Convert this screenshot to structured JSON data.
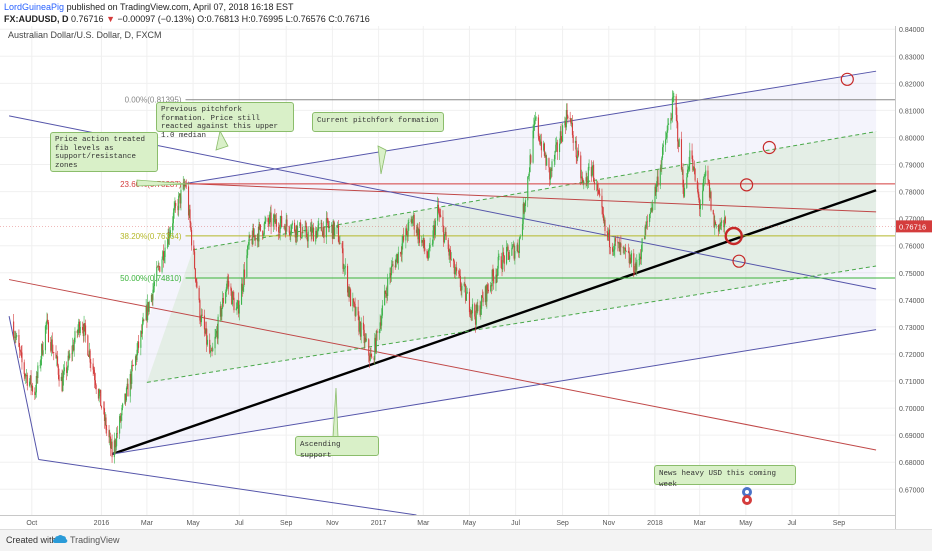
{
  "header": {
    "author": "LordGuineaPig",
    "published_text": "published on TradingView.com, April 07, 2018 16:18 EST",
    "symbol": "FX:AUDUSD, D",
    "last_price": "0.76716",
    "change_arrow": "▼",
    "change": "−0.00097 (−0.13%)",
    "ohlc": "O:0.76813 H:0.76995 L:0.76576 C:0.76716"
  },
  "chart_data": {
    "type": "candlestick",
    "title": "Australian Dollar/U.S. Dollar, D, FXCM",
    "x_ticks": [
      "Oct",
      "2016",
      "Mar",
      "May",
      "Jul",
      "Sep",
      "Nov",
      "2017",
      "Mar",
      "May",
      "Jul",
      "Sep",
      "Nov",
      "2018",
      "Mar",
      "May",
      "Jul",
      "Sep"
    ],
    "y_ticks": [
      "0.84000",
      "0.83000",
      "0.82000",
      "0.81000",
      "0.80000",
      "0.79000",
      "0.78000",
      "0.77000",
      "0.76000",
      "0.75000",
      "0.74000",
      "0.73000",
      "0.72000",
      "0.71000",
      "0.70000",
      "0.69000",
      "0.68000",
      "0.67000"
    ],
    "ylim": [
      0.6605,
      0.8412
    ],
    "last_price_label": "0.76716",
    "fib_levels": [
      {
        "label": "0.00%(0.81395)",
        "value": 0.81395,
        "color": "#888888"
      },
      {
        "label": "23.60%(0.78287)",
        "value": 0.78287,
        "color": "#d43c3c"
      },
      {
        "label": "38.20%(0.76364)",
        "value": 0.76364,
        "color": "#b5b82a"
      },
      {
        "label": "50.00%(0.74810)",
        "value": 0.7481,
        "color": "#3bb33b"
      }
    ],
    "price_path": [
      [
        "2015-09-05",
        0.732
      ],
      [
        "2015-09-20",
        0.714
      ],
      [
        "2015-10-05",
        0.706
      ],
      [
        "2015-10-20",
        0.731
      ],
      [
        "2015-11-10",
        0.709
      ],
      [
        "2015-12-05",
        0.733
      ],
      [
        "2015-12-20",
        0.716
      ],
      [
        "2016-01-15",
        0.683
      ],
      [
        "2016-02-05",
        0.707
      ],
      [
        "2016-03-05",
        0.74
      ],
      [
        "2016-04-05",
        0.771
      ],
      [
        "2016-04-21",
        0.783
      ],
      [
        "2016-05-10",
        0.735
      ],
      [
        "2016-05-25",
        0.718
      ],
      [
        "2016-06-15",
        0.747
      ],
      [
        "2016-06-28",
        0.735
      ],
      [
        "2016-07-15",
        0.762
      ],
      [
        "2016-08-10",
        0.769
      ],
      [
        "2016-09-10",
        0.767
      ],
      [
        "2016-09-28",
        0.764
      ],
      [
        "2016-10-25",
        0.767
      ],
      [
        "2016-11-08",
        0.765
      ],
      [
        "2016-11-25",
        0.74
      ],
      [
        "2016-12-23",
        0.717
      ],
      [
        "2017-01-15",
        0.749
      ],
      [
        "2017-02-15",
        0.77
      ],
      [
        "2017-03-08",
        0.755
      ],
      [
        "2017-03-20",
        0.773
      ],
      [
        "2017-04-10",
        0.751
      ],
      [
        "2017-05-09",
        0.734
      ],
      [
        "2017-06-10",
        0.754
      ],
      [
        "2017-07-05",
        0.76
      ],
      [
        "2017-07-27",
        0.806
      ],
      [
        "2017-08-15",
        0.786
      ],
      [
        "2017-09-08",
        0.81
      ],
      [
        "2017-09-28",
        0.782
      ],
      [
        "2017-10-10",
        0.789
      ],
      [
        "2017-10-28",
        0.764
      ],
      [
        "2017-11-20",
        0.757
      ],
      [
        "2017-12-08",
        0.752
      ],
      [
        "2018-01-01",
        0.78
      ],
      [
        "2018-01-26",
        0.814
      ],
      [
        "2018-02-09",
        0.779
      ],
      [
        "2018-02-16",
        0.795
      ],
      [
        "2018-03-01",
        0.775
      ],
      [
        "2018-03-10",
        0.787
      ],
      [
        "2018-03-20",
        0.768
      ],
      [
        "2018-04-05",
        0.7672
      ]
    ],
    "lines": [
      {
        "name": "ascending-support",
        "points": [
          [
            "2016-01-15",
            0.683
          ],
          [
            "2018-10-20",
            0.7805
          ]
        ],
        "color": "#000000"
      },
      {
        "name": "current-pitchfork-upper",
        "points": [
          [
            "2016-04-21",
            0.783
          ],
          [
            "2018-10-20",
            0.8245
          ]
        ],
        "color": "#5555aa"
      },
      {
        "name": "current-pitchfork-median",
        "points": [
          [
            "2016-04-21",
            0.783
          ],
          [
            "2018-10-20",
            0.7725
          ]
        ],
        "color": "#c04848"
      },
      {
        "name": "current-pitchfork-lower",
        "points": [
          [
            "2016-01-15",
            0.683
          ],
          [
            "2018-10-20",
            0.729
          ]
        ],
        "color": "#5555aa"
      },
      {
        "name": "previous-pitchfork-upper",
        "points": [
          [
            "2015-09-01",
            0.808
          ],
          [
            "2018-10-20",
            0.744
          ]
        ],
        "color": "#5555aa"
      },
      {
        "name": "previous-pitchfork-median",
        "points": [
          [
            "2015-09-01",
            0.7475
          ],
          [
            "2018-10-20",
            0.6845
          ]
        ],
        "color": "#c04848"
      },
      {
        "name": "previous-pitchfork-lower",
        "points": [
          [
            "2015-10-10",
            0.681
          ],
          [
            "2017-02-20",
            0.6605
          ]
        ],
        "color": "#5555aa"
      },
      {
        "name": "dashed-upper-median",
        "points": [
          [
            "2016-05-01",
            0.7585
          ],
          [
            "2018-10-20",
            0.8022
          ]
        ],
        "color": "#4aa84a"
      },
      {
        "name": "dashed-lower-median",
        "points": [
          [
            "2016-03-01",
            0.7095
          ],
          [
            "2018-10-20",
            0.7525
          ]
        ],
        "color": "#4aa84a"
      }
    ],
    "circles": [
      {
        "x": "2018-09-12",
        "y": 0.8215,
        "size": "small"
      },
      {
        "x": "2018-06-01",
        "y": 0.7963,
        "size": "small"
      },
      {
        "x": "2018-05-02",
        "y": 0.7825,
        "size": "small"
      },
      {
        "x": "2018-04-15",
        "y": 0.7636,
        "size": "large"
      },
      {
        "x": "2018-04-22",
        "y": 0.7543,
        "size": "small"
      }
    ],
    "callouts": [
      {
        "text": "Previous pitchfork formation. Price still reacted against this upper 1.0 median"
      },
      {
        "text": "Current pitchfork formation"
      },
      {
        "text": "Price action treated fib levels as support/resistance zones"
      },
      {
        "text": "Ascending support"
      },
      {
        "text": "News heavy USD this coming week"
      }
    ]
  },
  "footer": {
    "created_with": "Created with",
    "brand": "TradingView"
  }
}
